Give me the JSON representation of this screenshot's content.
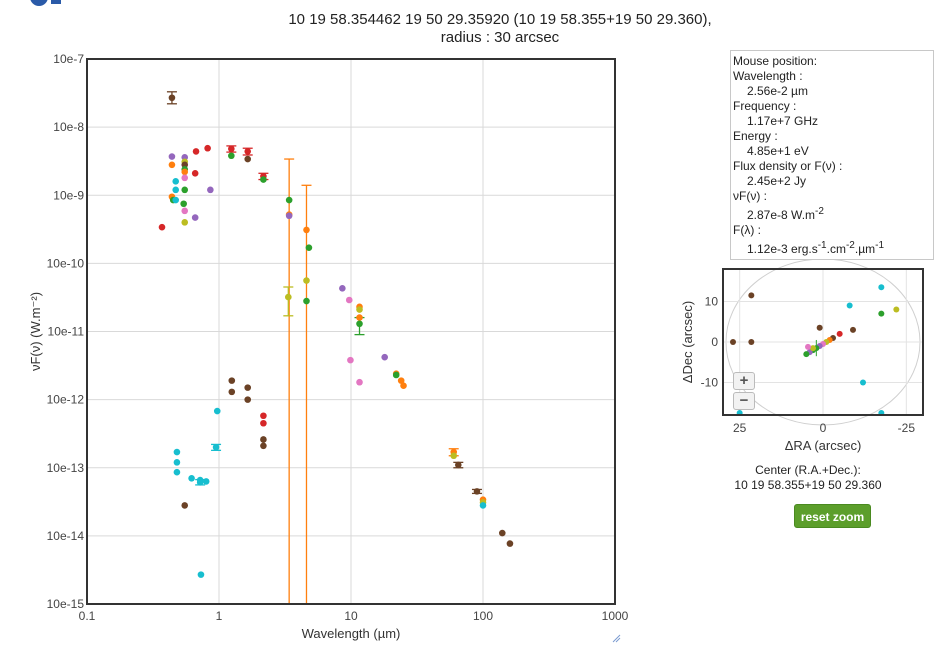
{
  "header": {
    "title_line1": "10 19 58.354462 19 50 29.35920 (10 19 58.355+19 50 29.360),",
    "title_line2": "radius : 30 arcsec"
  },
  "mouse_panel": {
    "heading": "Mouse position:",
    "wavelength_label": "Wavelength :",
    "wavelength_value": "2.56e-2 µm",
    "frequency_label": "Frequency :",
    "frequency_value": "1.17e+7 GHz",
    "energy_label": "Energy :",
    "energy_value": "4.85e+1 eV",
    "flux_label": "Flux density or F(ν) :",
    "flux_value": "2.45e+2 Jy",
    "vf_label": "νF(ν) :",
    "vf_value_mant": "2.87e-8 W.m",
    "vf_value_exp": "-2",
    "fl_label": "F(λ) :",
    "fl_value_a": "1.12e-3 erg.s",
    "fl_value_b": "-1",
    "fl_value_c": ".cm",
    "fl_value_d": "-2",
    "fl_value_e": ".µm",
    "fl_value_f": "-1"
  },
  "center": {
    "label": "Center (R.A.+Dec.):",
    "value": "10 19 58.355+19 50 29.360"
  },
  "reset_zoom_label": "reset zoom",
  "zoom_in_label": "+",
  "zoom_out_label": "−",
  "colors": {
    "purple": "#9467bd",
    "orange": "#ff7f0e",
    "cyan": "#17becf",
    "green": "#2ca02c",
    "red": "#d62728",
    "brown": "#6b4226",
    "pink": "#e377c2",
    "olive": "#bcbd22",
    "button_green": "#5c9e2b"
  },
  "chart_data": [
    {
      "type": "scatter",
      "xlabel": "Wavelength (µm)",
      "ylabel": "νF(ν) (W.m⁻²)",
      "xscale": "log",
      "yscale": "log",
      "xlim": [
        0.1,
        1000
      ],
      "ylim": [
        1e-15,
        1e-07
      ],
      "x_tick_labels": [
        "0.1",
        "1",
        "10",
        "100",
        "1000"
      ],
      "y_tick_labels": [
        "10e-15",
        "10e-14",
        "10e-13",
        "10e-12",
        "10e-11",
        "10e-10",
        "10e-9",
        "10e-8",
        "10e-7"
      ],
      "grid": true,
      "points": [
        {
          "x": 0.44,
          "y": 2.7e-08,
          "c": "brown",
          "err": [
            2.2e-08,
            3.3e-08
          ]
        },
        {
          "x": 0.44,
          "y": 3.7e-09,
          "c": "purple"
        },
        {
          "x": 0.44,
          "y": 2.8e-09,
          "c": "orange"
        },
        {
          "x": 0.44,
          "y": 9.5e-10,
          "c": "orange"
        },
        {
          "x": 0.45,
          "y": 8.5e-10,
          "c": "green"
        },
        {
          "x": 0.47,
          "y": 1.6e-09,
          "c": "cyan"
        },
        {
          "x": 0.47,
          "y": 1.2e-09,
          "c": "cyan"
        },
        {
          "x": 0.47,
          "y": 8.5e-10,
          "c": "cyan"
        },
        {
          "x": 0.37,
          "y": 3.4e-10,
          "c": "red"
        },
        {
          "x": 0.55,
          "y": 3.6e-09,
          "c": "purple"
        },
        {
          "x": 0.55,
          "y": 3.1e-09,
          "c": "olive"
        },
        {
          "x": 0.55,
          "y": 2.8e-09,
          "c": "brown"
        },
        {
          "x": 0.55,
          "y": 2.4e-09,
          "c": "green"
        },
        {
          "x": 0.55,
          "y": 2.2e-09,
          "c": "orange"
        },
        {
          "x": 0.55,
          "y": 1.8e-09,
          "c": "pink"
        },
        {
          "x": 0.55,
          "y": 1.2e-09,
          "c": "green"
        },
        {
          "x": 0.54,
          "y": 7.5e-10,
          "c": "green"
        },
        {
          "x": 0.55,
          "y": 5.9e-10,
          "c": "pink"
        },
        {
          "x": 0.55,
          "y": 4e-10,
          "c": "olive"
        },
        {
          "x": 0.67,
          "y": 4.4e-09,
          "c": "red"
        },
        {
          "x": 0.66,
          "y": 2.1e-09,
          "c": "red"
        },
        {
          "x": 0.66,
          "y": 4.7e-10,
          "c": "purple"
        },
        {
          "x": 0.82,
          "y": 4.9e-09,
          "c": "red"
        },
        {
          "x": 0.86,
          "y": 1.2e-09,
          "c": "purple"
        },
        {
          "x": 1.24,
          "y": 4.8e-09,
          "c": "red",
          "err": [
            4.3e-09,
            5.3e-09
          ]
        },
        {
          "x": 1.24,
          "y": 3.8e-09,
          "c": "green"
        },
        {
          "x": 1.65,
          "y": 4.4e-09,
          "c": "red",
          "err": [
            3.9e-09,
            4.9e-09
          ]
        },
        {
          "x": 1.65,
          "y": 3.4e-09,
          "c": "brown"
        },
        {
          "x": 2.17,
          "y": 1.9e-09,
          "c": "red",
          "err": [
            1.7e-09,
            2.1e-09
          ]
        },
        {
          "x": 2.17,
          "y": 1.7e-09,
          "c": "green"
        },
        {
          "x": 3.4,
          "y": 5.2e-10,
          "c": "orange",
          "err": [
            1e-15,
            3.4e-09
          ]
        },
        {
          "x": 3.4,
          "y": 5e-10,
          "c": "purple"
        },
        {
          "x": 3.35,
          "y": 3.2e-11,
          "c": "olive",
          "err": [
            1.7e-11,
            4.5e-11
          ]
        },
        {
          "x": 3.4,
          "y": 8.5e-10,
          "c": "green"
        },
        {
          "x": 4.6,
          "y": 3.1e-10,
          "c": "orange",
          "err": [
            1e-15,
            1.4e-09
          ]
        },
        {
          "x": 4.6,
          "y": 5.6e-11,
          "c": "olive"
        },
        {
          "x": 4.6,
          "y": 2.8e-11,
          "c": "green"
        },
        {
          "x": 4.8,
          "y": 1.7e-10,
          "c": "green"
        },
        {
          "x": 8.6,
          "y": 4.3e-11,
          "c": "purple"
        },
        {
          "x": 9.7,
          "y": 2.9e-11,
          "c": "pink"
        },
        {
          "x": 11.6,
          "y": 2.3e-11,
          "c": "orange"
        },
        {
          "x": 11.6,
          "y": 2.1e-11,
          "c": "olive"
        },
        {
          "x": 11.6,
          "y": 1.6e-11,
          "c": "orange"
        },
        {
          "x": 11.6,
          "y": 1.3e-11,
          "c": "green",
          "err": [
            9e-12,
            1.6e-11
          ]
        },
        {
          "x": 9.9,
          "y": 3.8e-12,
          "c": "pink"
        },
        {
          "x": 11.6,
          "y": 1.8e-12,
          "c": "pink"
        },
        {
          "x": 18,
          "y": 4.2e-12,
          "c": "purple"
        },
        {
          "x": 22,
          "y": 2.4e-12,
          "c": "orange"
        },
        {
          "x": 22,
          "y": 2.3e-12,
          "c": "green"
        },
        {
          "x": 24,
          "y": 1.9e-12,
          "c": "orange"
        },
        {
          "x": 25,
          "y": 1.6e-12,
          "c": "orange"
        },
        {
          "x": 60,
          "y": 1.7e-13,
          "c": "orange",
          "err": [
            1.5e-13,
            1.9e-13
          ]
        },
        {
          "x": 60,
          "y": 1.5e-13,
          "c": "olive"
        },
        {
          "x": 65,
          "y": 1.1e-13,
          "c": "brown",
          "err": [
            1e-13,
            1.2e-13
          ]
        },
        {
          "x": 90,
          "y": 4.5e-14,
          "c": "brown",
          "err": [
            4.2e-14,
            4.8e-14
          ]
        },
        {
          "x": 100,
          "y": 3.4e-14,
          "c": "orange"
        },
        {
          "x": 100,
          "y": 3.1e-14,
          "c": "olive"
        },
        {
          "x": 100,
          "y": 2.8e-14,
          "c": "cyan"
        },
        {
          "x": 140,
          "y": 1.1e-14,
          "c": "brown"
        },
        {
          "x": 160,
          "y": 7.7e-15,
          "c": "brown"
        },
        {
          "x": 1.25,
          "y": 1.9e-12,
          "c": "brown"
        },
        {
          "x": 1.25,
          "y": 1.3e-12,
          "c": "brown"
        },
        {
          "x": 1.65,
          "y": 1.5e-12,
          "c": "brown"
        },
        {
          "x": 1.65,
          "y": 1e-12,
          "c": "brown"
        },
        {
          "x": 2.17,
          "y": 5.8e-13,
          "c": "red"
        },
        {
          "x": 2.17,
          "y": 4.5e-13,
          "c": "red"
        },
        {
          "x": 2.17,
          "y": 2.6e-13,
          "c": "brown"
        },
        {
          "x": 2.17,
          "y": 2.1e-13,
          "c": "brown"
        },
        {
          "x": 0.48,
          "y": 1.7e-13,
          "c": "cyan"
        },
        {
          "x": 0.48,
          "y": 1.2e-13,
          "c": "cyan"
        },
        {
          "x": 0.48,
          "y": 8.6e-14,
          "c": "cyan"
        },
        {
          "x": 0.62,
          "y": 7e-14,
          "c": "cyan"
        },
        {
          "x": 0.72,
          "y": 6.6e-14,
          "c": "cyan"
        },
        {
          "x": 0.72,
          "y": 6.1e-14,
          "c": "cyan",
          "err": [
            5.6e-14,
            6.7e-14
          ]
        },
        {
          "x": 0.8,
          "y": 6.3e-14,
          "c": "cyan"
        },
        {
          "x": 0.55,
          "y": 2.8e-14,
          "c": "brown"
        },
        {
          "x": 0.73,
          "y": 2.7e-15,
          "c": "cyan"
        },
        {
          "x": 0.97,
          "y": 6.8e-13,
          "c": "cyan"
        },
        {
          "x": 0.95,
          "y": 2e-13,
          "c": "cyan",
          "err": [
            1.8e-13,
            2.2e-13
          ]
        }
      ]
    },
    {
      "type": "scatter",
      "xlabel": "ΔRA (arcsec)",
      "ylabel": "ΔDec (arcsec)",
      "xlim": [
        30,
        -30
      ],
      "ylim": [
        -18,
        18
      ],
      "x_tick_labels": [
        "25",
        "0",
        "-25"
      ],
      "y_tick_labels": [
        "10",
        "0",
        "-10"
      ],
      "points": [
        {
          "x": 27,
          "y": 0,
          "c": "brown"
        },
        {
          "x": 21.5,
          "y": 0,
          "c": "brown"
        },
        {
          "x": 21.5,
          "y": 11.5,
          "c": "brown"
        },
        {
          "x": 25,
          "y": -17.5,
          "c": "cyan"
        },
        {
          "x": 1,
          "y": 3.5,
          "c": "brown"
        },
        {
          "x": -8,
          "y": 9,
          "c": "cyan"
        },
        {
          "x": -17.5,
          "y": 13.5,
          "c": "cyan"
        },
        {
          "x": -17.5,
          "y": 7,
          "c": "green"
        },
        {
          "x": -22,
          "y": 8,
          "c": "olive"
        },
        {
          "x": -12,
          "y": -10,
          "c": "cyan"
        },
        {
          "x": -17.5,
          "y": -17.5,
          "c": "cyan"
        },
        {
          "x": -9,
          "y": 3,
          "c": "brown"
        },
        {
          "x": -5,
          "y": 2,
          "c": "red"
        },
        {
          "x": -3,
          "y": 1,
          "c": "brown"
        },
        {
          "x": -2,
          "y": 0.5,
          "c": "orange"
        },
        {
          "x": -1,
          "y": 0,
          "c": "olive"
        },
        {
          "x": 0,
          "y": -0.5,
          "c": "pink"
        },
        {
          "x": 1,
          "y": -1,
          "c": "purple"
        },
        {
          "x": 2,
          "y": -1.5,
          "c": "green"
        },
        {
          "x": 3,
          "y": -2,
          "c": "green"
        },
        {
          "x": 4,
          "y": -2.5,
          "c": "purple"
        },
        {
          "x": 5,
          "y": -3,
          "c": "green"
        },
        {
          "x": 3,
          "y": -1.5,
          "c": "olive"
        },
        {
          "x": 4.5,
          "y": -1.2,
          "c": "pink"
        }
      ]
    }
  ]
}
